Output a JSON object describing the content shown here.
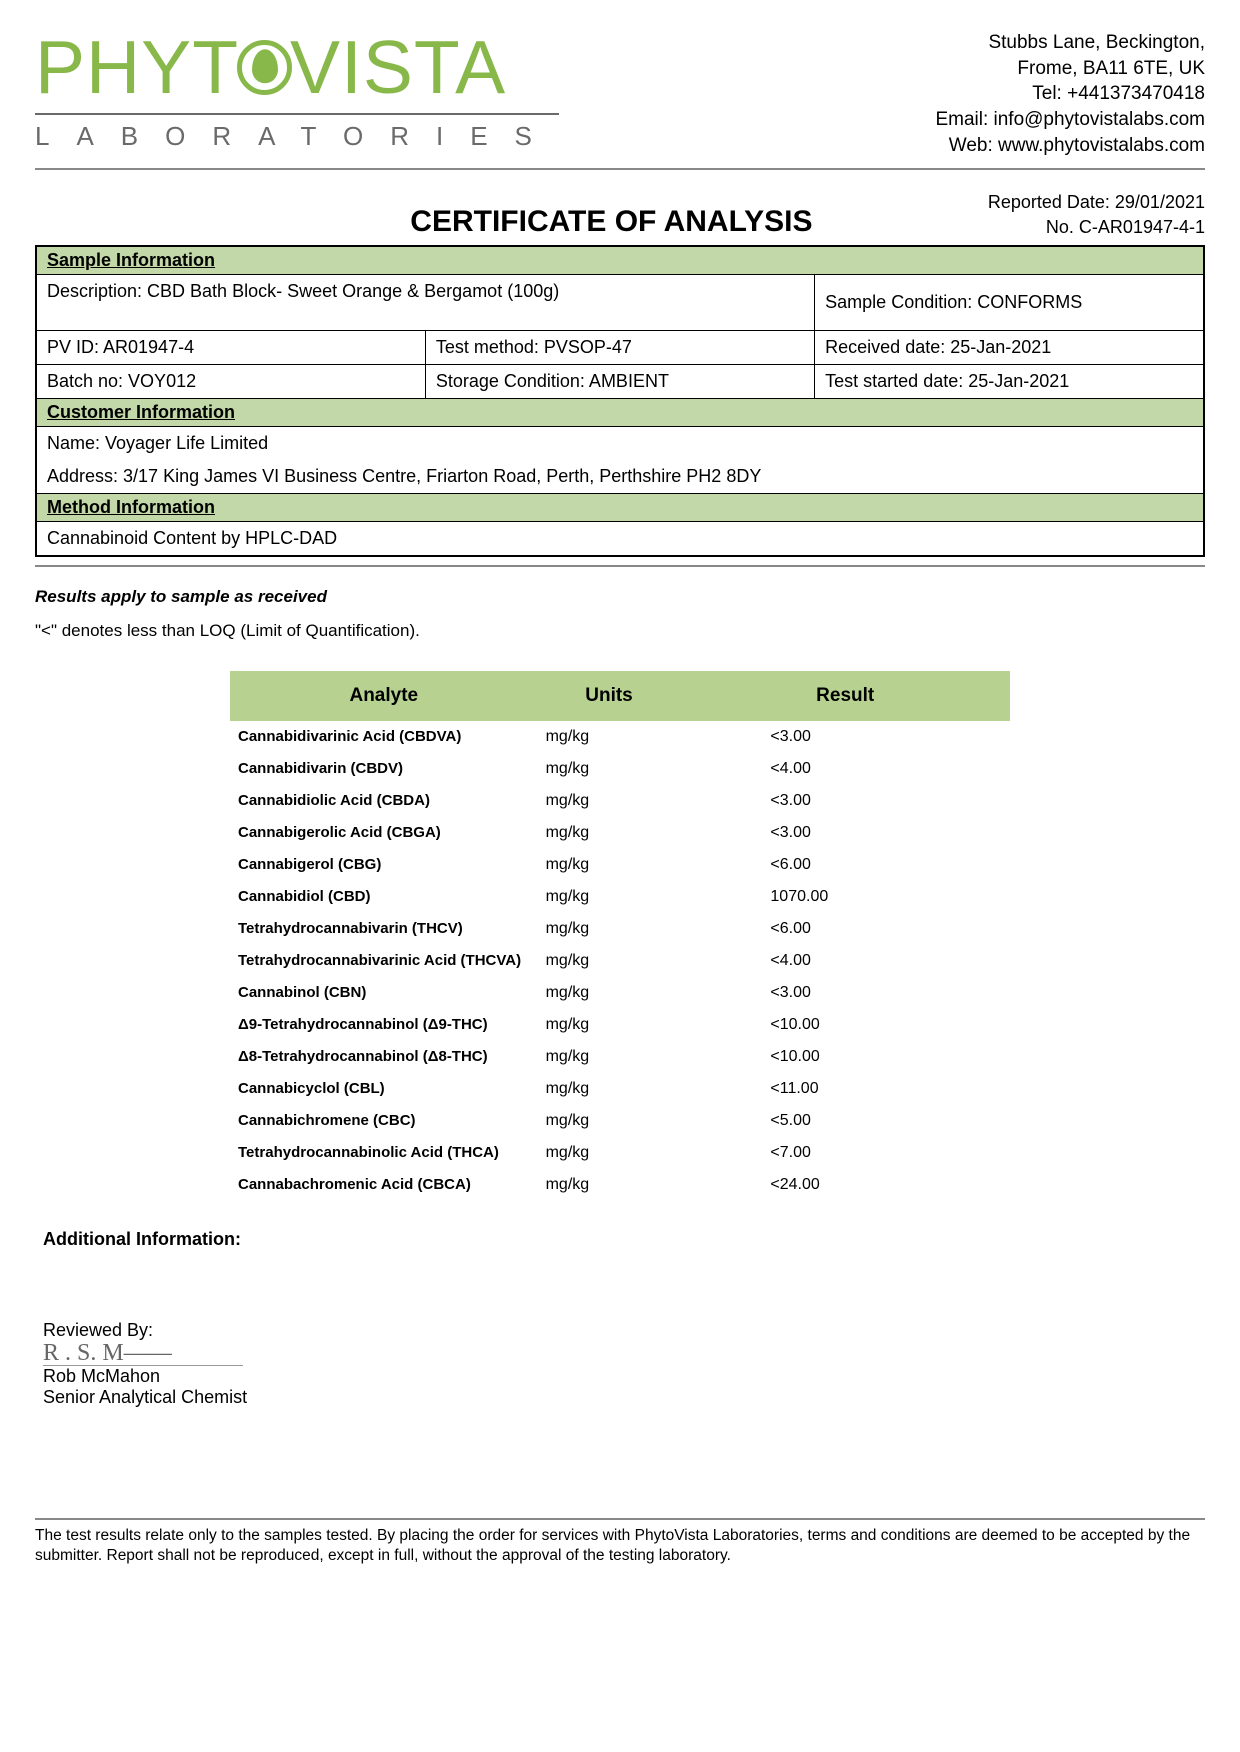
{
  "company": {
    "logo_main": "PHYT",
    "logo_main2": "VISTA",
    "logo_sub": "LABORATORIES",
    "addr1": "Stubbs Lane, Beckington,",
    "addr2": "Frome, BA11 6TE, UK",
    "tel": "Tel: +441373470418",
    "email": "Email: info@phytovistalabs.com",
    "web": "Web: www.phytovistalabs.com"
  },
  "report": {
    "title": "CERTIFICATE OF ANALYSIS",
    "reported_date": "Reported Date: 29/01/2021",
    "number": "No. C-AR01947-4-1"
  },
  "sections": {
    "sample_info": "Sample Information",
    "customer_info": "Customer Information",
    "method_info": "Method Information"
  },
  "sample": {
    "description": "Description: CBD Bath Block- Sweet Orange & Bergamot (100g)",
    "condition": "Sample Condition: CONFORMS",
    "pv_id": "PV ID: AR01947-4",
    "batch": "Batch no: VOY012",
    "test_method": "Test method: PVSOP-47",
    "storage": "Storage Condition: AMBIENT",
    "received": "Received date: 25-Jan-2021",
    "test_started": "Test started date: 25-Jan-2021"
  },
  "customer": {
    "name": "Name:   Voyager Life Limited",
    "address": "Address:   3/17 King James VI Business Centre, Friarton Road, Perth, Perthshire PH2 8DY"
  },
  "method": "Cannabinoid Content by HPLC-DAD",
  "notes": {
    "line1": "Results apply to sample as received",
    "line2": "\"<\" denotes less than LOQ (Limit of Quantification)."
  },
  "results": {
    "headers": {
      "analyte": "Analyte",
      "units": "Units",
      "result": "Result"
    },
    "rows": [
      {
        "a": "Cannabidivarinic Acid (CBDVA)",
        "u": "mg/kg",
        "r": "<3.00"
      },
      {
        "a": "Cannabidivarin (CBDV)",
        "u": "mg/kg",
        "r": "<4.00"
      },
      {
        "a": "Cannabidiolic Acid (CBDA)",
        "u": "mg/kg",
        "r": "<3.00"
      },
      {
        "a": "Cannabigerolic Acid (CBGA)",
        "u": "mg/kg",
        "r": "<3.00"
      },
      {
        "a": "Cannabigerol (CBG)",
        "u": "mg/kg",
        "r": "<6.00"
      },
      {
        "a": "Cannabidiol (CBD)",
        "u": "mg/kg",
        "r": "1070.00"
      },
      {
        "a": "Tetrahydrocannabivarin (THCV)",
        "u": "mg/kg",
        "r": "<6.00"
      },
      {
        "a": "Tetrahydrocannabivarinic Acid (THCVA)",
        "u": "mg/kg",
        "r": "<4.00"
      },
      {
        "a": "Cannabinol (CBN)",
        "u": "mg/kg",
        "r": "<3.00"
      },
      {
        "a": "Δ9-Tetrahydrocannabinol (Δ9-THC)",
        "u": "mg/kg",
        "r": "<10.00"
      },
      {
        "a": "Δ8-Tetrahydrocannabinol (Δ8-THC)",
        "u": "mg/kg",
        "r": "<10.00"
      },
      {
        "a": "Cannabicyclol (CBL)",
        "u": "mg/kg",
        "r": "<11.00"
      },
      {
        "a": "Cannabichromene (CBC)",
        "u": "mg/kg",
        "r": "<5.00"
      },
      {
        "a": "Tetrahydrocannabinolic Acid (THCA)",
        "u": "mg/kg",
        "r": "<7.00"
      },
      {
        "a": "Cannabachromenic Acid (CBCA)",
        "u": "mg/kg",
        "r": "<24.00"
      }
    ]
  },
  "additional": "Additional Information:",
  "review": {
    "label": "Reviewed By:",
    "signature": "R . S. M——",
    "name": "Rob McMahon",
    "title": "Senior Analytical Chemist"
  },
  "disclaimer": "The test results relate only to the samples tested.  By placing the order for services with PhytoVista Laboratories, terms and conditions are deemed to be accepted by the submitter. Report shall not be reproduced, except in full, without the approval of the testing laboratory.",
  "colors": {
    "brand_green": "#89b84a",
    "section_bg": "#c3d8a8",
    "result_head_bg": "#b7d290"
  }
}
